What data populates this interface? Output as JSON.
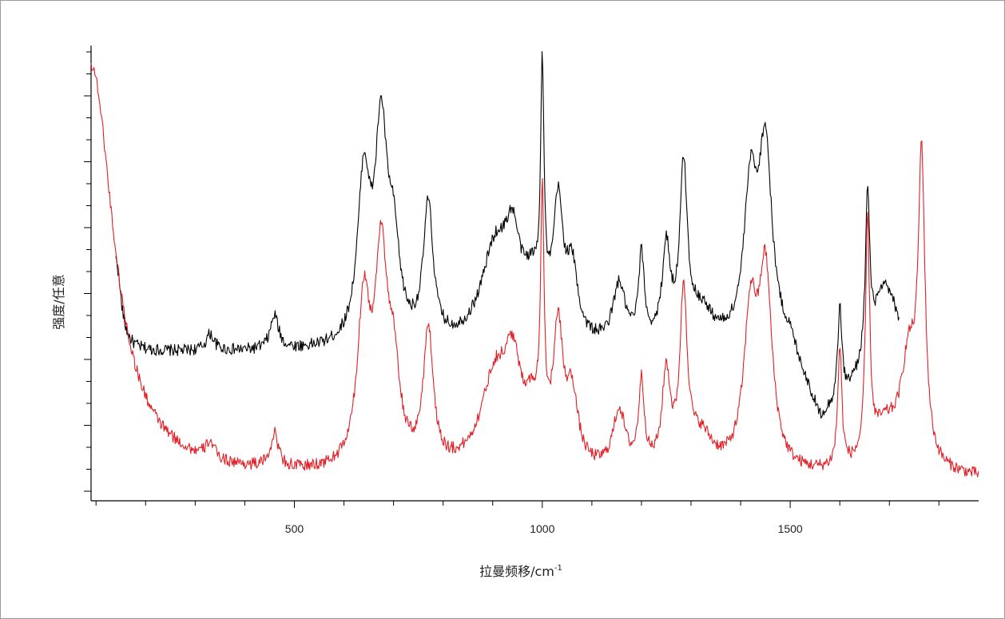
{
  "chart_data": {
    "type": "line",
    "xlabel": "拉曼频移/cm",
    "xlabel_sup": "-1",
    "ylabel": "强度/任意",
    "xlim": [
      90,
      1880
    ],
    "ylim": [
      -0.05,
      1.05
    ],
    "x_major_ticks": [
      500,
      1000,
      1500
    ],
    "x_minor_step": 100,
    "y_tick_count": 21,
    "y_tick_labels": "none",
    "grid": false,
    "legend": "none",
    "series": [
      {
        "color": "#000000",
        "x_range": [
          140,
          1720
        ],
        "peaks": [
          {
            "x": 140,
            "h": 0.22,
            "w": 12
          },
          {
            "x": 330,
            "h": 0.04,
            "w": 10
          },
          {
            "x": 460,
            "h": 0.08,
            "w": 10
          },
          {
            "x": 640,
            "h": 0.38,
            "w": 15
          },
          {
            "x": 675,
            "h": 0.48,
            "w": 15
          },
          {
            "x": 700,
            "h": 0.2,
            "w": 15
          },
          {
            "x": 770,
            "h": 0.32,
            "w": 12
          },
          {
            "x": 905,
            "h": 0.22,
            "w": 35
          },
          {
            "x": 940,
            "h": 0.18,
            "w": 18
          },
          {
            "x": 980,
            "h": 0.12,
            "w": 25
          },
          {
            "x": 1000,
            "h": 0.55,
            "w": 4
          },
          {
            "x": 1032,
            "h": 0.3,
            "w": 12
          },
          {
            "x": 1060,
            "h": 0.16,
            "w": 14
          },
          {
            "x": 1155,
            "h": 0.14,
            "w": 15
          },
          {
            "x": 1200,
            "h": 0.2,
            "w": 7
          },
          {
            "x": 1250,
            "h": 0.22,
            "w": 10
          },
          {
            "x": 1285,
            "h": 0.4,
            "w": 9
          },
          {
            "x": 1320,
            "h": 0.08,
            "w": 30
          },
          {
            "x": 1420,
            "h": 0.35,
            "w": 16
          },
          {
            "x": 1450,
            "h": 0.45,
            "w": 16
          },
          {
            "x": 1600,
            "h": 0.22,
            "w": 5
          },
          {
            "x": 1656,
            "h": 0.38,
            "w": 5
          },
          {
            "x": 1690,
            "h": 0.22,
            "w": 35
          }
        ],
        "baseline": [
          [
            140,
            0.3
          ],
          [
            1500,
            0.3
          ],
          [
            1560,
            0.12
          ],
          [
            1720,
            0.25
          ]
        ]
      },
      {
        "color": "#e21f26",
        "x_range": [
          90,
          1880
        ],
        "peaks": [
          {
            "x": 90,
            "h": 0.98,
            "w": 55
          },
          {
            "x": 330,
            "h": 0.04,
            "w": 10
          },
          {
            "x": 460,
            "h": 0.08,
            "w": 10
          },
          {
            "x": 640,
            "h": 0.38,
            "w": 15
          },
          {
            "x": 675,
            "h": 0.48,
            "w": 15
          },
          {
            "x": 700,
            "h": 0.2,
            "w": 15
          },
          {
            "x": 770,
            "h": 0.32,
            "w": 12
          },
          {
            "x": 905,
            "h": 0.22,
            "w": 35
          },
          {
            "x": 940,
            "h": 0.18,
            "w": 18
          },
          {
            "x": 980,
            "h": 0.12,
            "w": 25
          },
          {
            "x": 1000,
            "h": 0.55,
            "w": 4
          },
          {
            "x": 1032,
            "h": 0.3,
            "w": 12
          },
          {
            "x": 1060,
            "h": 0.16,
            "w": 14
          },
          {
            "x": 1155,
            "h": 0.14,
            "w": 15
          },
          {
            "x": 1200,
            "h": 0.2,
            "w": 7
          },
          {
            "x": 1250,
            "h": 0.22,
            "w": 10
          },
          {
            "x": 1285,
            "h": 0.4,
            "w": 9
          },
          {
            "x": 1320,
            "h": 0.08,
            "w": 30
          },
          {
            "x": 1420,
            "h": 0.35,
            "w": 16
          },
          {
            "x": 1450,
            "h": 0.45,
            "w": 16
          },
          {
            "x": 1600,
            "h": 0.28,
            "w": 5
          },
          {
            "x": 1656,
            "h": 0.55,
            "w": 5
          },
          {
            "x": 1690,
            "h": 0.1,
            "w": 35
          },
          {
            "x": 1740,
            "h": 0.25,
            "w": 20
          },
          {
            "x": 1765,
            "h": 0.68,
            "w": 8
          }
        ],
        "baseline": [
          [
            90,
            0.0
          ],
          [
            1880,
            0.0
          ]
        ]
      }
    ]
  }
}
